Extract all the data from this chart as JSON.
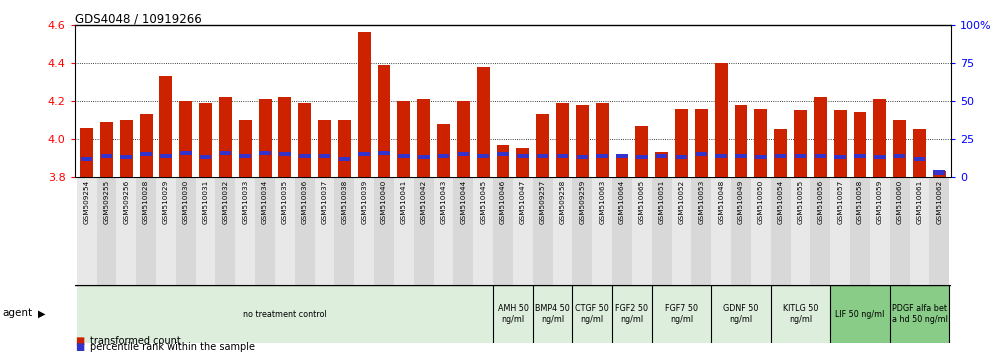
{
  "title": "GDS4048 / 10919266",
  "samples": [
    "GSM509254",
    "GSM509255",
    "GSM509256",
    "GSM510028",
    "GSM510029",
    "GSM510030",
    "GSM510031",
    "GSM510032",
    "GSM510033",
    "GSM510034",
    "GSM510035",
    "GSM510036",
    "GSM510037",
    "GSM510038",
    "GSM510039",
    "GSM510040",
    "GSM510041",
    "GSM510042",
    "GSM510043",
    "GSM510044",
    "GSM510045",
    "GSM510046",
    "GSM510047",
    "GSM509257",
    "GSM509258",
    "GSM509259",
    "GSM510063",
    "GSM510064",
    "GSM510065",
    "GSM510051",
    "GSM510052",
    "GSM510053",
    "GSM510048",
    "GSM510049",
    "GSM510050",
    "GSM510054",
    "GSM510055",
    "GSM510056",
    "GSM510057",
    "GSM510058",
    "GSM510059",
    "GSM510060",
    "GSM510061",
    "GSM510062"
  ],
  "transformed_counts": [
    4.06,
    4.09,
    4.1,
    4.13,
    4.33,
    4.2,
    4.19,
    4.22,
    4.1,
    4.21,
    4.22,
    4.19,
    4.1,
    4.1,
    4.56,
    4.39,
    4.2,
    4.21,
    4.08,
    4.2,
    4.38,
    3.97,
    3.95,
    4.13,
    4.19,
    4.18,
    4.19,
    3.92,
    4.07,
    3.93,
    4.16,
    4.16,
    4.4,
    4.18,
    4.16,
    4.05,
    4.15,
    4.22,
    4.15,
    4.14,
    4.21,
    4.1,
    4.05,
    3.83
  ],
  "percentile_ranks": [
    12,
    14,
    13,
    15,
    14,
    16,
    13,
    16,
    14,
    16,
    15,
    14,
    14,
    12,
    15,
    16,
    14,
    13,
    14,
    15,
    14,
    15,
    14,
    14,
    14,
    13,
    14,
    14,
    13,
    14,
    13,
    15,
    14,
    14,
    13,
    14,
    14,
    14,
    13,
    14,
    13,
    14,
    12,
    3
  ],
  "ymin": 3.8,
  "ymax": 4.6,
  "yticks_left": [
    3.8,
    4.0,
    4.2,
    4.4,
    4.6
  ],
  "yticks_right_pos": [
    3.8,
    4.0,
    4.2,
    4.4,
    4.6
  ],
  "yticks_right_labels": [
    "0",
    "25",
    "50",
    "75",
    "100%"
  ],
  "bar_color": "#CC2200",
  "blue_color": "#3333CC",
  "agent_groups": [
    {
      "label": "no treatment control",
      "start": 0,
      "end": 21,
      "color": "#DDEEDD"
    },
    {
      "label": "AMH 50\nng/ml",
      "start": 21,
      "end": 23,
      "color": "#DDEEDD"
    },
    {
      "label": "BMP4 50\nng/ml",
      "start": 23,
      "end": 25,
      "color": "#DDEEDD"
    },
    {
      "label": "CTGF 50\nng/ml",
      "start": 25,
      "end": 27,
      "color": "#DDEEDD"
    },
    {
      "label": "FGF2 50\nng/ml",
      "start": 27,
      "end": 29,
      "color": "#DDEEDD"
    },
    {
      "label": "FGF7 50\nng/ml",
      "start": 29,
      "end": 32,
      "color": "#DDEEDD"
    },
    {
      "label": "GDNF 50\nng/ml",
      "start": 32,
      "end": 35,
      "color": "#DDEEDD"
    },
    {
      "label": "KITLG 50\nng/ml",
      "start": 35,
      "end": 38,
      "color": "#DDEEDD"
    },
    {
      "label": "LIF 50 ng/ml",
      "start": 38,
      "end": 41,
      "color": "#88CC88"
    },
    {
      "label": "PDGF alfa bet\na hd 50 ng/ml",
      "start": 41,
      "end": 44,
      "color": "#88CC88"
    }
  ],
  "bg_color": "#f0f0f0",
  "plot_bg": "#ffffff"
}
